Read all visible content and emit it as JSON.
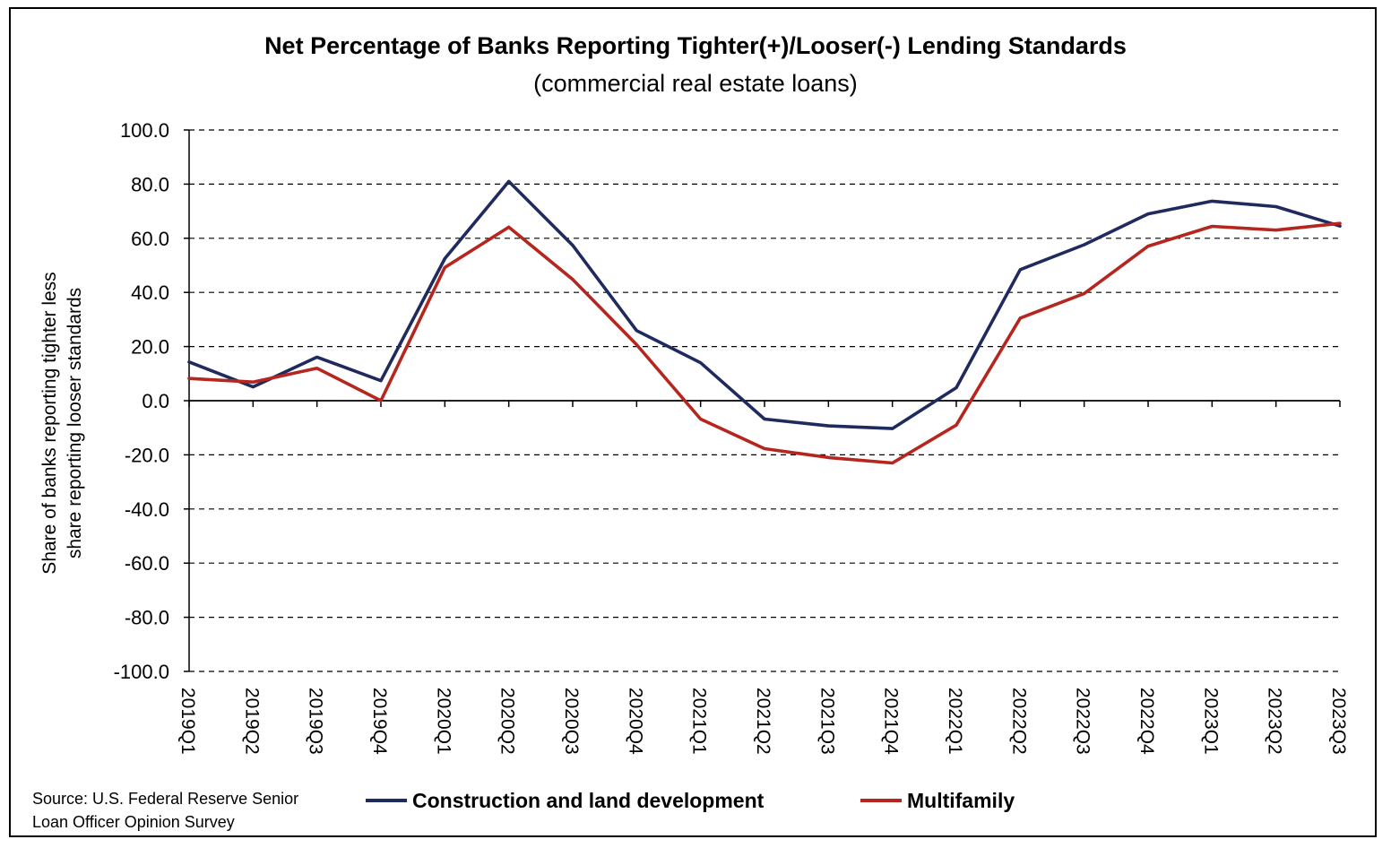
{
  "chart_data": {
    "type": "line",
    "title": "Net Percentage of Banks Reporting Tighter(+)/Looser(-) Lending Standards",
    "subtitle": "(commercial real estate loans)",
    "ylabel_lines": [
      "Share of banks reporting tighter less",
      "share reporting looser standards"
    ],
    "xlabel": "",
    "ylim": [
      -100,
      100
    ],
    "yticks": [
      100,
      80,
      60,
      40,
      20,
      0,
      -20,
      -40,
      -60,
      -80,
      -100
    ],
    "ytick_labels": [
      "100.0",
      "80.0",
      "60.0",
      "40.0",
      "20.0",
      "0.0",
      "-20.0",
      "-40.0",
      "-60.0",
      "-80.0",
      "-100.0"
    ],
    "categories": [
      "2019Q1",
      "2019Q2",
      "2019Q3",
      "2019Q4",
      "2020Q1",
      "2020Q2",
      "2020Q3",
      "2020Q4",
      "2021Q1",
      "2021Q2",
      "2021Q3",
      "2021Q4",
      "2022Q1",
      "2022Q2",
      "2022Q3",
      "2022Q4",
      "2023Q1",
      "2023Q2",
      "2023Q3"
    ],
    "grid": "horizontal dashed",
    "legend_position": "bottom",
    "series": [
      {
        "name": "Construction and land development",
        "color": "#1f2a5e",
        "values": [
          14.3,
          5.1,
          16.1,
          7.4,
          52.5,
          81.0,
          57.4,
          25.9,
          14.0,
          -6.8,
          -9.3,
          -10.3,
          4.8,
          48.4,
          57.6,
          69.0,
          73.7,
          71.7,
          64.5
        ]
      },
      {
        "name": "Multifamily",
        "color": "#b5261e",
        "values": [
          8.2,
          6.9,
          12.0,
          0.0,
          49.2,
          64.1,
          44.8,
          20.7,
          -6.8,
          -17.7,
          -21.0,
          -23.0,
          -9.0,
          30.5,
          39.6,
          57.1,
          64.4,
          63.0,
          65.5
        ]
      }
    ]
  },
  "footer": {
    "source_lines": [
      "Source: U.S. Federal Reserve Senior",
      "Loan Officer Opinion Survey"
    ]
  }
}
